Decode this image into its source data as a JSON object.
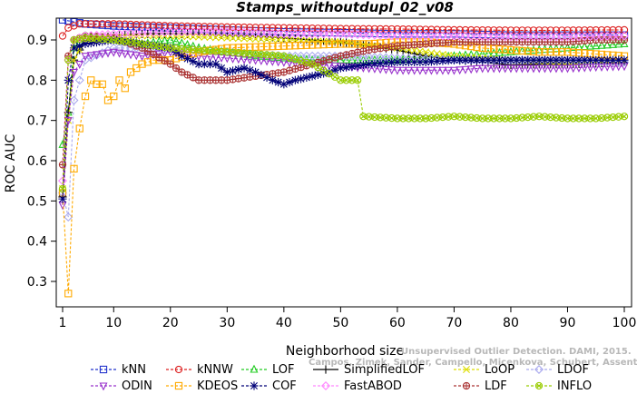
{
  "chart_data": {
    "type": "line",
    "title": "Stamps_withoutdupl_02_v08",
    "xlabel": "Neighborhood size",
    "ylabel": "ROC AUC",
    "xlim": [
      1,
      100
    ],
    "ylim": [
      0.25,
      0.95
    ],
    "xticks": [
      1,
      10,
      20,
      30,
      40,
      50,
      60,
      70,
      80,
      90,
      100
    ],
    "yticks": [
      0.3,
      0.4,
      0.5,
      0.6,
      0.7,
      0.8,
      0.9
    ],
    "grid": false,
    "legend_position": "bottom",
    "watermark": [
      "Unsupervised Outlier Detection. DAMI, 2015.",
      "Campos, Zimek, Sander, Campello, Micenkova, Schubert, Assent, Houle"
    ],
    "series": [
      {
        "name": "kNN",
        "color": "#2233cc",
        "marker": "square",
        "line": "dashed",
        "points": [
          [
            1,
            0.95
          ],
          [
            3,
            0.945
          ],
          [
            5,
            0.94
          ],
          [
            10,
            0.935
          ],
          [
            20,
            0.93
          ],
          [
            30,
            0.925
          ],
          [
            40,
            0.92
          ],
          [
            50,
            0.918
          ],
          [
            60,
            0.915
          ],
          [
            70,
            0.915
          ],
          [
            80,
            0.912
          ],
          [
            90,
            0.912
          ],
          [
            100,
            0.912
          ]
        ]
      },
      {
        "name": "kNNW",
        "color": "#dd2222",
        "marker": "circle",
        "line": "dashed",
        "points": [
          [
            1,
            0.91
          ],
          [
            2,
            0.93
          ],
          [
            4,
            0.94
          ],
          [
            10,
            0.94
          ],
          [
            20,
            0.935
          ],
          [
            30,
            0.932
          ],
          [
            40,
            0.93
          ],
          [
            50,
            0.928
          ],
          [
            60,
            0.927
          ],
          [
            70,
            0.925
          ],
          [
            80,
            0.924
          ],
          [
            90,
            0.924
          ],
          [
            100,
            0.925
          ]
        ]
      },
      {
        "name": "LOF",
        "color": "#22cc22",
        "marker": "triangle",
        "line": "dashed",
        "points": [
          [
            1,
            0.64
          ],
          [
            2,
            0.72
          ],
          [
            3,
            0.88
          ],
          [
            5,
            0.91
          ],
          [
            10,
            0.9
          ],
          [
            15,
            0.89
          ],
          [
            20,
            0.9
          ],
          [
            25,
            0.88
          ],
          [
            30,
            0.87
          ],
          [
            35,
            0.86
          ],
          [
            40,
            0.855
          ],
          [
            45,
            0.85
          ],
          [
            50,
            0.85
          ],
          [
            55,
            0.85
          ],
          [
            60,
            0.85
          ],
          [
            65,
            0.855
          ],
          [
            70,
            0.86
          ],
          [
            75,
            0.865
          ],
          [
            80,
            0.87
          ],
          [
            85,
            0.875
          ],
          [
            90,
            0.88
          ],
          [
            95,
            0.885
          ],
          [
            100,
            0.89
          ]
        ]
      },
      {
        "name": "SimplifiedLOF",
        "color": "#000000",
        "marker": "plus",
        "line": "solid",
        "points": [
          [
            1,
            0.51
          ],
          [
            2,
            0.72
          ],
          [
            3,
            0.85
          ],
          [
            5,
            0.9
          ],
          [
            10,
            0.91
          ],
          [
            15,
            0.915
          ],
          [
            20,
            0.915
          ],
          [
            25,
            0.915
          ],
          [
            30,
            0.912
          ],
          [
            35,
            0.91
          ],
          [
            40,
            0.905
          ],
          [
            45,
            0.9
          ],
          [
            50,
            0.895
          ],
          [
            55,
            0.885
          ],
          [
            60,
            0.875
          ],
          [
            65,
            0.86
          ],
          [
            70,
            0.85
          ],
          [
            75,
            0.845
          ],
          [
            80,
            0.838
          ],
          [
            85,
            0.84
          ],
          [
            90,
            0.84
          ],
          [
            95,
            0.842
          ],
          [
            100,
            0.845
          ]
        ]
      },
      {
        "name": "LoOP",
        "color": "#dddd00",
        "marker": "cross",
        "line": "dashed",
        "points": [
          [
            1,
            0.53
          ],
          [
            2,
            0.7
          ],
          [
            3,
            0.85
          ],
          [
            5,
            0.9
          ],
          [
            10,
            0.91
          ],
          [
            20,
            0.91
          ],
          [
            30,
            0.905
          ],
          [
            40,
            0.9
          ],
          [
            50,
            0.895
          ],
          [
            60,
            0.88
          ],
          [
            70,
            0.86
          ],
          [
            80,
            0.85
          ],
          [
            90,
            0.845
          ],
          [
            100,
            0.845
          ]
        ]
      },
      {
        "name": "LDOF",
        "color": "#aaaaee",
        "marker": "diamond",
        "line": "dashed",
        "points": [
          [
            1,
            0.52
          ],
          [
            2,
            0.46
          ],
          [
            3,
            0.75
          ],
          [
            5,
            0.85
          ],
          [
            10,
            0.88
          ],
          [
            20,
            0.88
          ],
          [
            30,
            0.87
          ],
          [
            40,
            0.86
          ],
          [
            50,
            0.86
          ],
          [
            60,
            0.855
          ],
          [
            70,
            0.85
          ],
          [
            80,
            0.85
          ],
          [
            90,
            0.85
          ],
          [
            100,
            0.845
          ]
        ]
      },
      {
        "name": "ODIN",
        "color": "#9933cc",
        "marker": "triangle-down",
        "line": "dashed",
        "points": [
          [
            1,
            0.49
          ],
          [
            2,
            0.7
          ],
          [
            3,
            0.82
          ],
          [
            5,
            0.86
          ],
          [
            10,
            0.87
          ],
          [
            15,
            0.86
          ],
          [
            20,
            0.87
          ],
          [
            25,
            0.86
          ],
          [
            30,
            0.855
          ],
          [
            35,
            0.85
          ],
          [
            40,
            0.845
          ],
          [
            45,
            0.84
          ],
          [
            50,
            0.835
          ],
          [
            55,
            0.83
          ],
          [
            60,
            0.825
          ],
          [
            65,
            0.825
          ],
          [
            70,
            0.825
          ],
          [
            75,
            0.83
          ],
          [
            80,
            0.83
          ],
          [
            85,
            0.83
          ],
          [
            90,
            0.83
          ],
          [
            95,
            0.833
          ],
          [
            100,
            0.835
          ]
        ]
      },
      {
        "name": "KDEOS",
        "color": "#ffaa00",
        "marker": "square",
        "line": "dashed",
        "points": [
          [
            1,
            0.52
          ],
          [
            2,
            0.27
          ],
          [
            3,
            0.58
          ],
          [
            4,
            0.68
          ],
          [
            5,
            0.76
          ],
          [
            6,
            0.8
          ],
          [
            7,
            0.79
          ],
          [
            8,
            0.79
          ],
          [
            9,
            0.75
          ],
          [
            10,
            0.76
          ],
          [
            11,
            0.8
          ],
          [
            12,
            0.78
          ],
          [
            13,
            0.82
          ],
          [
            14,
            0.83
          ],
          [
            15,
            0.84
          ],
          [
            17,
            0.85
          ],
          [
            20,
            0.85
          ],
          [
            25,
            0.87
          ],
          [
            30,
            0.88
          ],
          [
            40,
            0.885
          ],
          [
            50,
            0.89
          ],
          [
            55,
            0.89
          ],
          [
            60,
            0.895
          ],
          [
            65,
            0.895
          ],
          [
            70,
            0.89
          ],
          [
            75,
            0.88
          ],
          [
            80,
            0.875
          ],
          [
            85,
            0.87
          ],
          [
            90,
            0.87
          ],
          [
            95,
            0.865
          ],
          [
            100,
            0.86
          ]
        ]
      },
      {
        "name": "LDF",
        "color": "#aa3333",
        "marker": "circle-plus",
        "line": "dashed",
        "points": [
          [
            1,
            0.59
          ],
          [
            2,
            0.86
          ],
          [
            3,
            0.9
          ],
          [
            5,
            0.91
          ],
          [
            10,
            0.905
          ],
          [
            15,
            0.88
          ],
          [
            20,
            0.84
          ],
          [
            22,
            0.82
          ],
          [
            25,
            0.8
          ],
          [
            30,
            0.8
          ],
          [
            35,
            0.81
          ],
          [
            40,
            0.82
          ],
          [
            45,
            0.84
          ],
          [
            50,
            0.86
          ],
          [
            55,
            0.875
          ],
          [
            60,
            0.885
          ],
          [
            65,
            0.89
          ],
          [
            70,
            0.895
          ],
          [
            75,
            0.895
          ],
          [
            80,
            0.895
          ],
          [
            85,
            0.895
          ],
          [
            90,
            0.895
          ],
          [
            95,
            0.9
          ],
          [
            100,
            0.9
          ]
        ]
      },
      {
        "name": "COF",
        "color": "#000077",
        "marker": "star",
        "line": "dashed",
        "points": [
          [
            1,
            0.505
          ],
          [
            2,
            0.8
          ],
          [
            3,
            0.88
          ],
          [
            5,
            0.89
          ],
          [
            10,
            0.9
          ],
          [
            15,
            0.89
          ],
          [
            20,
            0.88
          ],
          [
            22,
            0.86
          ],
          [
            25,
            0.84
          ],
          [
            28,
            0.84
          ],
          [
            30,
            0.82
          ],
          [
            33,
            0.83
          ],
          [
            35,
            0.82
          ],
          [
            38,
            0.8
          ],
          [
            40,
            0.79
          ],
          [
            42,
            0.8
          ],
          [
            45,
            0.81
          ],
          [
            48,
            0.82
          ],
          [
            50,
            0.83
          ],
          [
            55,
            0.84
          ],
          [
            60,
            0.845
          ],
          [
            65,
            0.845
          ],
          [
            70,
            0.85
          ],
          [
            75,
            0.85
          ],
          [
            80,
            0.85
          ],
          [
            85,
            0.85
          ],
          [
            90,
            0.85
          ],
          [
            95,
            0.85
          ],
          [
            100,
            0.85
          ]
        ]
      },
      {
        "name": "FastABOD",
        "color": "#ff88ff",
        "marker": "diamond",
        "line": "dashed",
        "points": [
          [
            1,
            0.55
          ],
          [
            2,
            0.85
          ],
          [
            3,
            0.9
          ],
          [
            5,
            0.91
          ],
          [
            10,
            0.915
          ],
          [
            20,
            0.92
          ],
          [
            30,
            0.92
          ],
          [
            40,
            0.915
          ],
          [
            50,
            0.915
          ],
          [
            60,
            0.91
          ],
          [
            70,
            0.91
          ],
          [
            80,
            0.908
          ],
          [
            90,
            0.908
          ],
          [
            100,
            0.91
          ]
        ]
      },
      {
        "name": "INFLO",
        "color": "#99cc00",
        "marker": "circle-x",
        "line": "dashed",
        "points": [
          [
            1,
            0.53
          ],
          [
            2,
            0.85
          ],
          [
            3,
            0.9
          ],
          [
            5,
            0.905
          ],
          [
            10,
            0.9
          ],
          [
            20,
            0.88
          ],
          [
            30,
            0.87
          ],
          [
            40,
            0.86
          ],
          [
            45,
            0.84
          ],
          [
            50,
            0.8
          ],
          [
            52,
            0.8
          ],
          [
            53,
            0.8
          ],
          [
            54,
            0.71
          ],
          [
            60,
            0.705
          ],
          [
            65,
            0.705
          ],
          [
            70,
            0.71
          ],
          [
            75,
            0.705
          ],
          [
            80,
            0.705
          ],
          [
            85,
            0.71
          ],
          [
            90,
            0.705
          ],
          [
            95,
            0.705
          ],
          [
            100,
            0.71
          ]
        ]
      }
    ]
  }
}
